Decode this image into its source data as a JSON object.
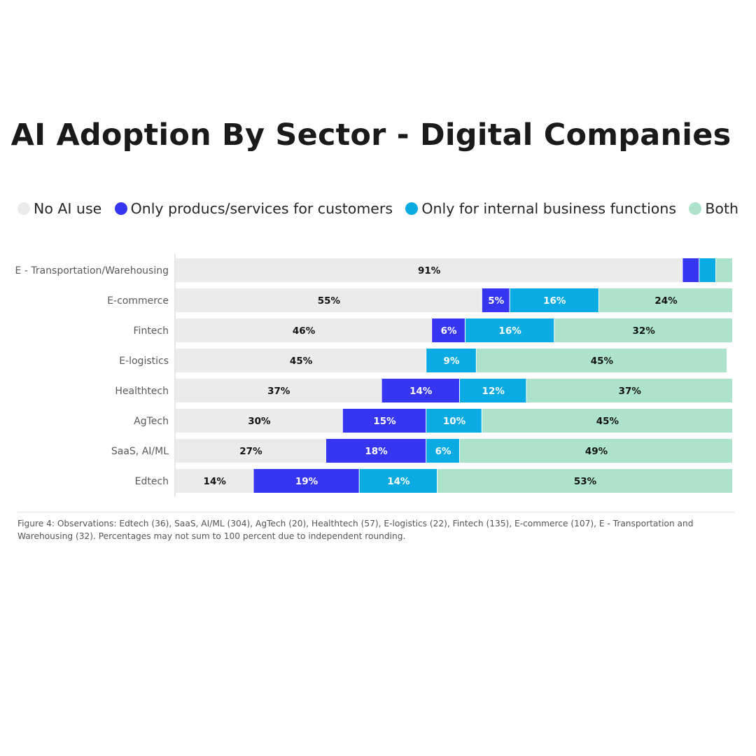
{
  "title": "AI Adoption By Sector - Digital Companies",
  "footnote": "Figure 4: Observations: Edtech (36), SaaS, AI/ML (304), AgTech (20), Healthtech (57), E-logistics (22), Fintech (135), E-commerce (107), E - Transportation and Warehousing (32). Percentages may not sum to 100 percent due to independent rounding.",
  "legend": [
    {
      "label": "No AI use",
      "color": "#ebebeb"
    },
    {
      "label": "Only producs/services for customers",
      "color": "#3535f2"
    },
    {
      "label": "Only for internal business functions",
      "color": "#0aabe3"
    },
    {
      "label": "Both",
      "color": "#ade3cb"
    }
  ],
  "chart_data": {
    "type": "bar",
    "orientation": "horizontal",
    "stacked": true,
    "title": "AI Adoption By Sector - Digital Companies",
    "categories": [
      "E - Transportation/Warehousing",
      "E-commerce",
      "Fintech",
      "E-logistics",
      "Healthtech",
      "AgTech",
      "SaaS, AI/ML",
      "Edtech"
    ],
    "series": [
      {
        "name": "No AI use",
        "color": "#ebebeb",
        "label_color": "#111111",
        "values": [
          91,
          55,
          46,
          45,
          37,
          30,
          27,
          14
        ]
      },
      {
        "name": "Only producs/services for customers",
        "color": "#3535f2",
        "label_color": "#ffffff",
        "values": [
          3,
          5,
          6,
          0,
          14,
          15,
          18,
          19
        ]
      },
      {
        "name": "Only for internal business functions",
        "color": "#0aabe3",
        "label_color": "#ffffff",
        "values": [
          3,
          16,
          16,
          9,
          12,
          10,
          6,
          14
        ]
      },
      {
        "name": "Both",
        "color": "#ade3cb",
        "label_color": "#111111",
        "values": [
          3,
          24,
          32,
          45,
          37,
          45,
          49,
          53
        ]
      }
    ],
    "shown_labels": [
      [
        "91%",
        "",
        "",
        ""
      ],
      [
        "55%",
        "5%",
        "16%",
        "24%"
      ],
      [
        "46%",
        "6%",
        "16%",
        "32%"
      ],
      [
        "45%",
        "",
        "9%",
        "45%"
      ],
      [
        "37%",
        "14%",
        "12%",
        "37%"
      ],
      [
        "30%",
        "15%",
        "10%",
        "45%"
      ],
      [
        "27%",
        "18%",
        "6%",
        "49%"
      ],
      [
        "14%",
        "19%",
        "14%",
        "53%"
      ]
    ],
    "xlim": [
      0,
      100
    ],
    "legend_position": "top",
    "grid": false
  }
}
